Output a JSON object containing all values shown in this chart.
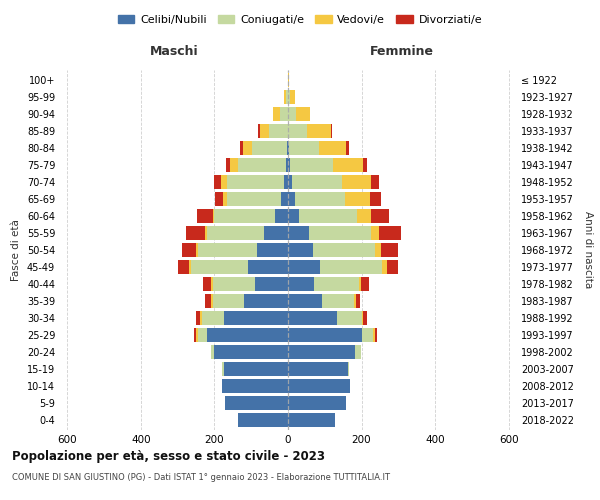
{
  "age_groups": [
    "100+",
    "95-99",
    "90-94",
    "85-89",
    "80-84",
    "75-79",
    "70-74",
    "65-69",
    "60-64",
    "55-59",
    "50-54",
    "45-49",
    "40-44",
    "35-39",
    "30-34",
    "25-29",
    "20-24",
    "15-19",
    "10-14",
    "5-9",
    "0-4"
  ],
  "birth_years": [
    "≤ 1922",
    "1923-1927",
    "1928-1932",
    "1933-1937",
    "1938-1942",
    "1943-1947",
    "1948-1952",
    "1953-1957",
    "1958-1962",
    "1963-1967",
    "1968-1972",
    "1973-1977",
    "1978-1982",
    "1983-1987",
    "1988-1992",
    "1993-1997",
    "1998-2002",
    "2003-2007",
    "2008-2012",
    "2013-2017",
    "2018-2022"
  ],
  "male": {
    "celibi": [
      0,
      0,
      1,
      1,
      2,
      5,
      10,
      20,
      35,
      65,
      85,
      110,
      90,
      120,
      175,
      220,
      200,
      175,
      180,
      170,
      135
    ],
    "coniugati": [
      1,
      5,
      20,
      50,
      95,
      130,
      155,
      145,
      165,
      155,
      160,
      155,
      115,
      85,
      60,
      25,
      10,
      5,
      0,
      0,
      0
    ],
    "vedovi": [
      0,
      5,
      20,
      25,
      25,
      22,
      18,
      12,
      5,
      5,
      5,
      5,
      5,
      5,
      5,
      5,
      0,
      0,
      0,
      0,
      0
    ],
    "divorziati": [
      0,
      0,
      0,
      5,
      8,
      12,
      18,
      22,
      42,
      52,
      38,
      28,
      20,
      15,
      10,
      5,
      0,
      0,
      0,
      0,
      0
    ]
  },
  "female": {
    "nubili": [
      0,
      0,
      1,
      1,
      2,
      5,
      10,
      18,
      30,
      58,
      68,
      88,
      72,
      92,
      132,
      200,
      182,
      162,
      168,
      158,
      128
    ],
    "coniugate": [
      1,
      6,
      22,
      52,
      82,
      118,
      138,
      138,
      158,
      168,
      168,
      168,
      122,
      88,
      68,
      32,
      16,
      5,
      0,
      0,
      0
    ],
    "vedove": [
      2,
      12,
      38,
      65,
      75,
      80,
      78,
      68,
      38,
      22,
      16,
      12,
      5,
      5,
      5,
      5,
      0,
      0,
      0,
      0,
      0
    ],
    "divorziate": [
      0,
      0,
      0,
      2,
      6,
      12,
      22,
      28,
      48,
      58,
      48,
      32,
      22,
      12,
      10,
      5,
      0,
      0,
      0,
      0,
      0
    ]
  },
  "colors": {
    "celibi": "#4472a8",
    "coniugati": "#c5d9a0",
    "vedovi": "#f5c842",
    "divorziati": "#c8291c"
  },
  "xlim": 620,
  "title": "Popolazione per età, sesso e stato civile - 2023",
  "subtitle": "COMUNE DI SAN GIUSTINO (PG) - Dati ISTAT 1° gennaio 2023 - Elaborazione TUTTITALIA.IT",
  "ylabel_left": "Fasce di età",
  "ylabel_right": "Anni di nascita",
  "xlabel_maschi": "Maschi",
  "xlabel_femmine": "Femmine",
  "legend_labels": [
    "Celibi/Nubili",
    "Coniugati/e",
    "Vedovi/e",
    "Divorziati/e"
  ],
  "background_color": "#ffffff",
  "grid_color": "#bbbbbb"
}
